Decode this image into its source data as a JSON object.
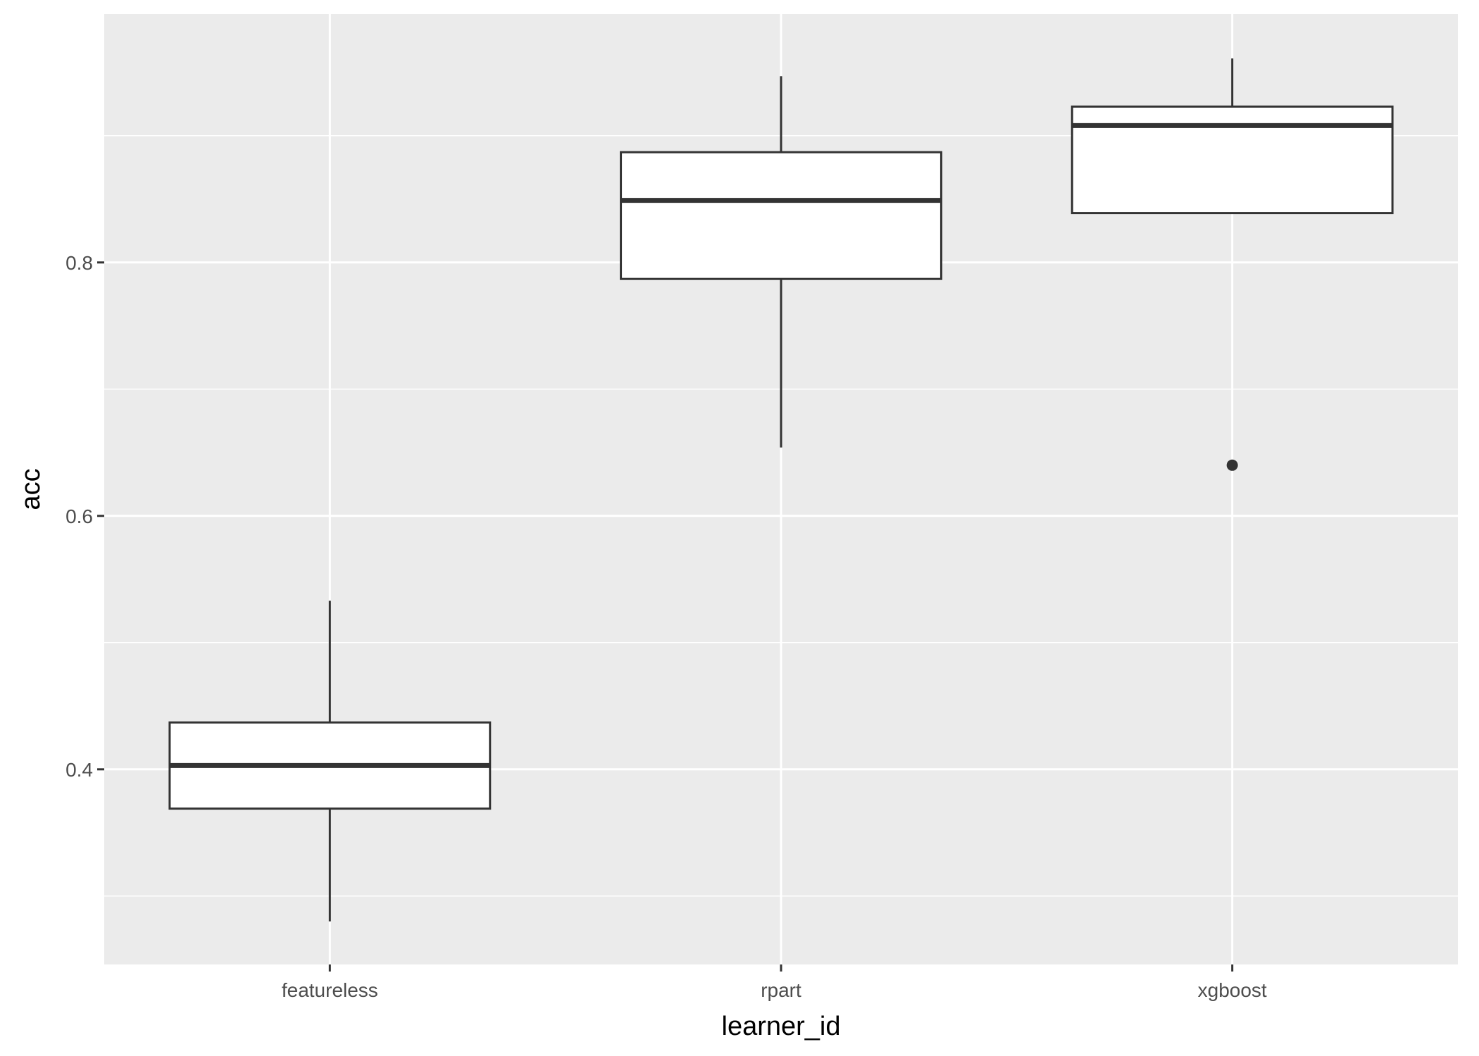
{
  "chart_data": {
    "type": "boxplot",
    "xlabel": "learner_id",
    "ylabel": "acc",
    "categories": [
      "featureless",
      "rpart",
      "xgboost"
    ],
    "ylim": [
      0.246,
      0.996
    ],
    "yticks": [
      0.4,
      0.6,
      0.8
    ],
    "ytick_labels": [
      "0.4",
      "0.6",
      "0.8"
    ],
    "minor_yticks": [
      0.3,
      0.5,
      0.7,
      0.9
    ],
    "grid": true,
    "legend": "none",
    "boxes": [
      {
        "category": "featureless",
        "whisker_low": 0.28,
        "q1": 0.369,
        "median": 0.403,
        "q3": 0.437,
        "whisker_high": 0.533,
        "outliers": []
      },
      {
        "category": "rpart",
        "whisker_low": 0.654,
        "q1": 0.787,
        "median": 0.849,
        "q3": 0.887,
        "whisker_high": 0.947,
        "outliers": []
      },
      {
        "category": "xgboost",
        "whisker_low": 0.839,
        "q1": 0.839,
        "median": 0.908,
        "q3": 0.923,
        "whisker_high": 0.961,
        "outliers": [
          0.64
        ]
      }
    ],
    "colors": {
      "panel": "#ebebeb",
      "grid": "#ffffff",
      "box_fill": "#ffffff",
      "box_line": "#333333"
    }
  }
}
